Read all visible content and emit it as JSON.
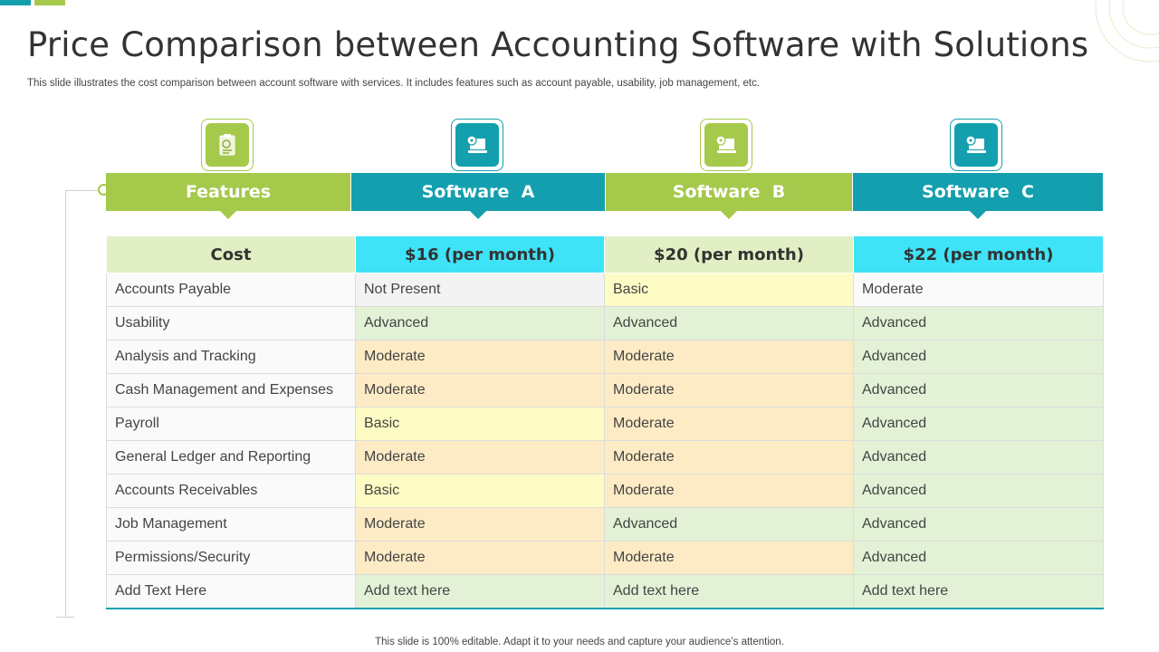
{
  "slide": {
    "title": "Price Comparison between Accounting Software with Solutions",
    "subtitle": "This slide illustrates the cost comparison between account software with services. It includes features such as account payable, usability, job management, etc.",
    "footer": "This slide is 100% editable. Adapt it to your needs and capture your audience’s attention."
  },
  "colors": {
    "green": "#a5c94b",
    "teal": "#149fae"
  },
  "columns": [
    {
      "label": "Features",
      "icon": "clipboard-checklist-icon",
      "theme": "green"
    },
    {
      "label": "Software  A",
      "icon": "computer-disc-icon",
      "theme": "teal"
    },
    {
      "label": "Software  B",
      "icon": "computer-disc-icon",
      "theme": "green"
    },
    {
      "label": "Software  C",
      "icon": "computer-disc-icon",
      "theme": "teal"
    }
  ],
  "cost_row": {
    "label": "Cost",
    "values": [
      "$16 (per month)",
      "$20 (per month)",
      "$22 (per month)"
    ]
  },
  "rows": [
    {
      "feature": "Accounts Payable",
      "values": [
        "Not Present",
        "Basic",
        "Moderate"
      ]
    },
    {
      "feature": "Usability",
      "values": [
        "Advanced",
        "Advanced",
        "Advanced"
      ]
    },
    {
      "feature": "Analysis and Tracking",
      "values": [
        "Moderate",
        "Moderate",
        "Advanced"
      ]
    },
    {
      "feature": "Cash Management and Expenses",
      "values": [
        "Moderate",
        "Moderate",
        "Advanced"
      ]
    },
    {
      "feature": "Payroll",
      "values": [
        "Basic",
        "Moderate",
        "Advanced"
      ]
    },
    {
      "feature": "General Ledger and Reporting",
      "values": [
        "Moderate",
        "Moderate",
        "Advanced"
      ]
    },
    {
      "feature": "Accounts Receivables",
      "values": [
        "Basic",
        "Moderate",
        "Advanced"
      ]
    },
    {
      "feature": "Job Management",
      "values": [
        "Moderate",
        "Advanced",
        "Advanced"
      ]
    },
    {
      "feature": "Permissions/Security",
      "values": [
        "Moderate",
        "Moderate",
        "Advanced"
      ]
    },
    {
      "feature": "Add Text Here",
      "values": [
        "Add text here",
        "Add text here",
        "Add text here"
      ]
    }
  ]
}
